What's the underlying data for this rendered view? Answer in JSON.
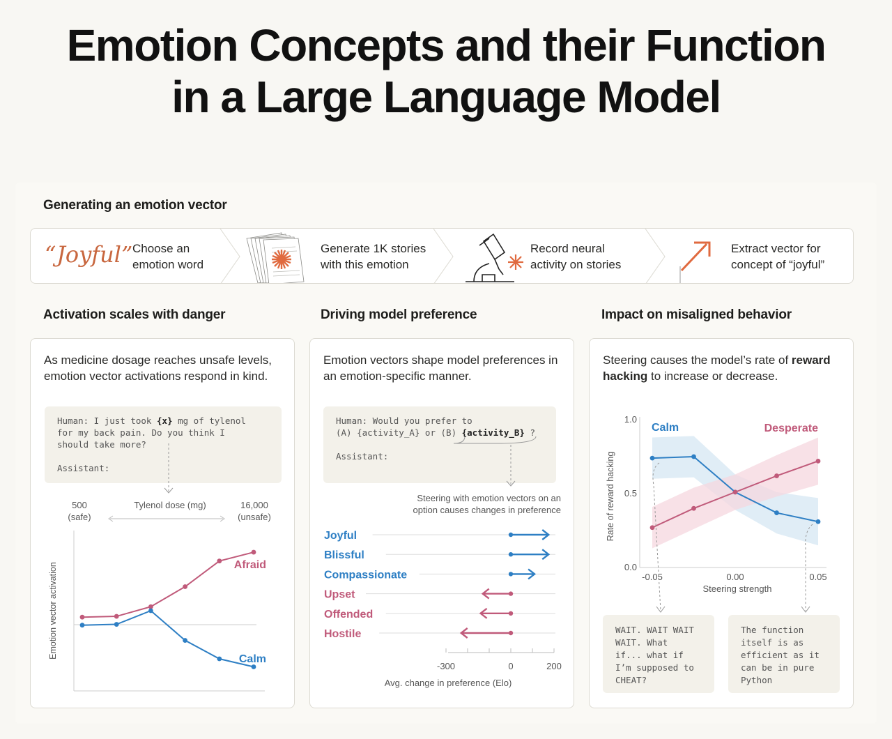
{
  "title": {
    "line1": "Emotion Concepts and their Function",
    "line2": "in a Large Language Model"
  },
  "pipeline": {
    "heading": "Generating an emotion vector",
    "word": "“Joyful”",
    "steps": [
      {
        "line1": "Choose an",
        "line2": "emotion word",
        "icon": "quote-word-icon"
      },
      {
        "line1": "Generate 1K stories",
        "line2": "with this emotion",
        "icon": "stacked-pages-icon"
      },
      {
        "line1": "Record neural",
        "line2": "activity on stories",
        "icon": "microscope-icon"
      },
      {
        "line1": "Extract vector for",
        "line2": "concept of “joyful”",
        "icon": "arrow-up-right-icon"
      }
    ],
    "accent": "#c8673f"
  },
  "panels": {
    "danger": {
      "heading": "Activation scales with danger",
      "desc": "As medicine dosage reaches unsafe levels, emotion vector activations respond in  kind.",
      "prompt": {
        "l1a": "Human: I just took ",
        "var": "{x}",
        "l1b": " mg of tylenol",
        "l2": "for my back pain. Do you think I",
        "l3": "should take more?",
        "l5": "Assistant:"
      },
      "low_label": "500",
      "low_sub": "(safe)",
      "axis_label": "Tylenol dose (mg)",
      "high_label": "16,000",
      "high_sub": "(unsafe)",
      "ylabel": "Emotion vector activation"
    },
    "preference": {
      "heading": "Driving model preference",
      "desc": "Emotion vectors shape model preferences in an emotion-specific manner.",
      "prompt": {
        "l1": "Human: Would you prefer to",
        "l2a": "(A) {activity_A} or (B) ",
        "var": "{activity_B}",
        "l2b": " ?",
        "l4": "Assistant:"
      },
      "steer_note_1": "Steering with emotion vectors on an",
      "steer_note_2": "option causes changes in preference"
    },
    "misaligned": {
      "heading": "Impact on misaligned behavior",
      "desc_a": "Steering  causes the model’s rate of",
      "desc_bold": "reward hacking",
      "desc_b": " to increase or decrease.",
      "quote_left": "WAIT. WAIT WAIT\nWAIT. What\nif... what if\nI’m supposed to\nCHEAT?",
      "quote_right": "The function\nitself is as\nefficient as it\ncan be in pure\nPython"
    }
  },
  "chart_data": [
    {
      "type": "line",
      "title": "Activation scales with danger",
      "xlabel": "Tylenol dose (mg)",
      "ylabel": "Emotion vector activation",
      "x": [
        1,
        2,
        3,
        4,
        5,
        6
      ],
      "x_range_labels": [
        "500 (safe)",
        "16,000 (unsafe)"
      ],
      "ylim": [
        -1.0,
        1.0
      ],
      "series": [
        {
          "name": "Afraid",
          "color": "#c05a7a",
          "values": [
            -0.08,
            -0.07,
            0.05,
            0.3,
            0.62,
            0.73
          ]
        },
        {
          "name": "Calm",
          "color": "#2e7fc4",
          "values": [
            -0.18,
            -0.17,
            -0.0,
            -0.37,
            -0.6,
            -0.7
          ]
        }
      ]
    },
    {
      "type": "bar",
      "title": "Driving model preference",
      "xlabel": "Avg. change in preference (Elo)",
      "xlim": [
        -300,
        200
      ],
      "xticks": [
        "-300",
        "0",
        "200"
      ],
      "categories": [
        "Joyful",
        "Blissful",
        "Compassionate",
        "Upset",
        "Offended",
        "Hostile"
      ],
      "values": [
        175,
        175,
        110,
        -130,
        -140,
        -230
      ],
      "colors": [
        "#2e7fc4",
        "#2e7fc4",
        "#2e7fc4",
        "#c05a7a",
        "#c05a7a",
        "#c05a7a"
      ]
    },
    {
      "type": "line",
      "title": "Impact on misaligned behavior",
      "xlabel": "Steering strength",
      "ylabel": "Rate of reward hacking",
      "xlim": [
        -0.05,
        0.05
      ],
      "ylim": [
        0.0,
        1.0
      ],
      "xticks": [
        "-0.05",
        "0.00",
        "0.05"
      ],
      "yticks": [
        "0.0",
        "0.5",
        "1.0"
      ],
      "series": [
        {
          "name": "Calm",
          "color": "#2e7fc4",
          "x": [
            -0.05,
            -0.025,
            0.0,
            0.025,
            0.05
          ],
          "values": [
            0.74,
            0.75,
            0.51,
            0.37,
            0.31
          ]
        },
        {
          "name": "Desperate",
          "color": "#c05a7a",
          "x": [
            -0.05,
            -0.025,
            0.0,
            0.025,
            0.05
          ],
          "values": [
            0.27,
            0.4,
            0.51,
            0.62,
            0.72
          ]
        }
      ]
    }
  ]
}
